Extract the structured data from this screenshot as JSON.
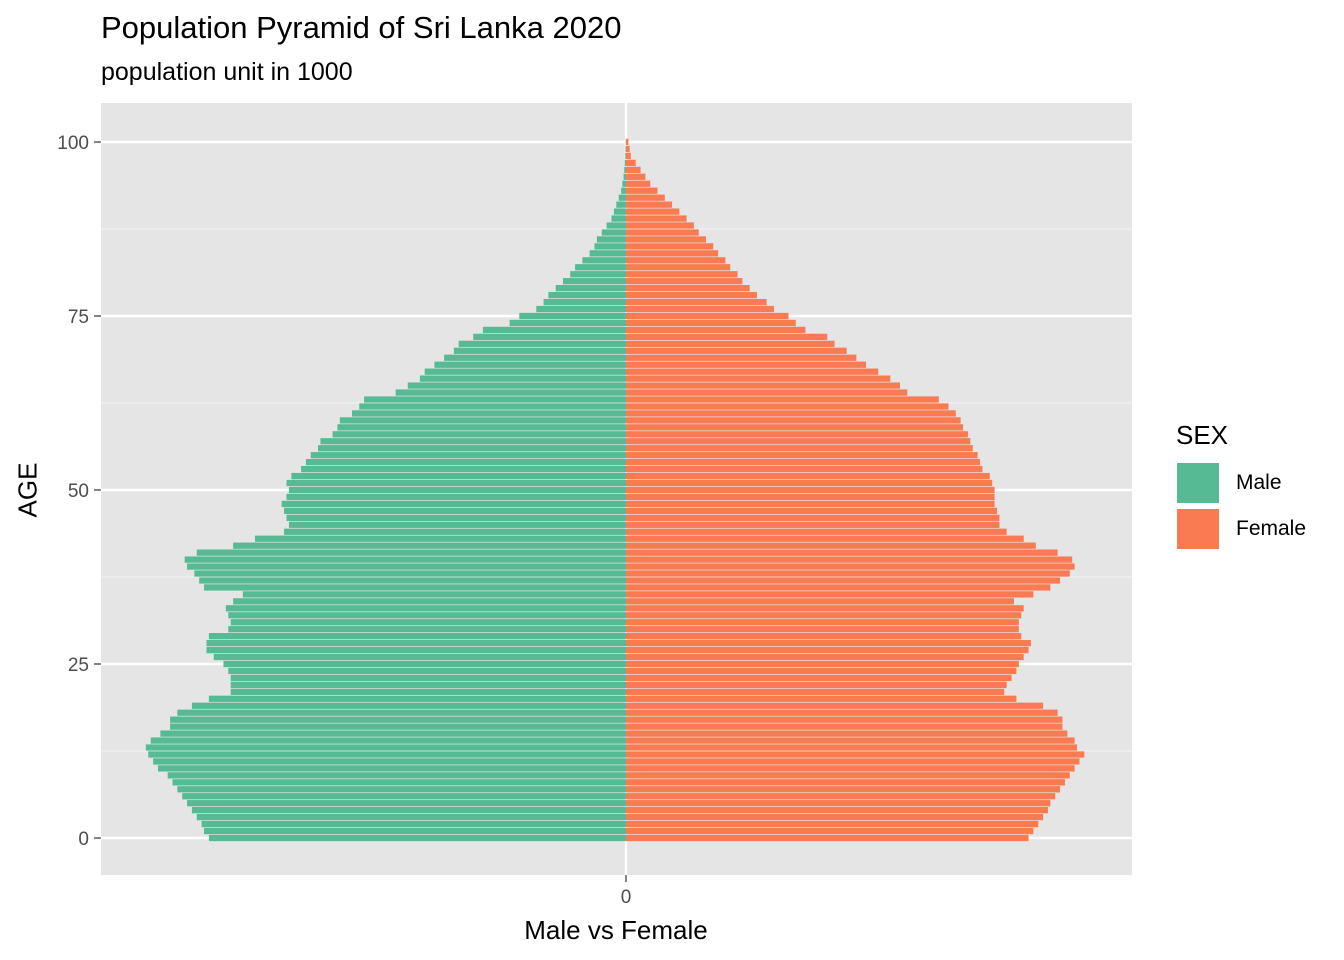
{
  "chart_data": {
    "type": "bar",
    "orientation": "horizontal",
    "title": "Population Pyramid of Sri Lanka 2020",
    "subtitle": "population unit in 1000",
    "xlabel": "Male vs Female",
    "ylabel": "AGE",
    "y_ticks": [
      "0",
      "25",
      "50",
      "75",
      "100"
    ],
    "x_ticks": [
      "0"
    ],
    "grid": true,
    "legend": {
      "title": "SEX",
      "position": "right",
      "entries": [
        {
          "name": "Male",
          "color": "#56BA94"
        },
        {
          "name": "Female",
          "color": "#FA7A51"
        }
      ]
    },
    "ages": [
      0,
      1,
      2,
      3,
      4,
      5,
      6,
      7,
      8,
      9,
      10,
      11,
      12,
      13,
      14,
      15,
      16,
      17,
      18,
      19,
      20,
      21,
      22,
      23,
      24,
      25,
      26,
      27,
      28,
      29,
      30,
      31,
      32,
      33,
      34,
      35,
      36,
      37,
      38,
      39,
      40,
      41,
      42,
      43,
      44,
      45,
      46,
      47,
      48,
      49,
      50,
      51,
      52,
      53,
      54,
      55,
      56,
      57,
      58,
      59,
      60,
      61,
      62,
      63,
      64,
      65,
      66,
      67,
      68,
      69,
      70,
      71,
      72,
      73,
      74,
      75,
      76,
      77,
      78,
      79,
      80,
      81,
      82,
      83,
      84,
      85,
      86,
      87,
      88,
      89,
      90,
      91,
      92,
      93,
      94,
      95,
      96,
      97,
      98,
      99,
      100
    ],
    "series": [
      {
        "name": "Male",
        "color": "#56BA94",
        "values": [
          -172,
          -174,
          -175,
          -177,
          -179,
          -181,
          -183,
          -185,
          -187,
          -189,
          -193,
          -195,
          -197,
          -198,
          -196,
          -192,
          -188,
          -188,
          -185,
          -179,
          -172,
          -163,
          -163,
          -163,
          -164,
          -166,
          -170,
          -173,
          -173,
          -172,
          -164,
          -163,
          -164,
          -165,
          -162,
          -158,
          -174,
          -176,
          -178,
          -181,
          -182,
          -177,
          -162,
          -153,
          -141,
          -139,
          -140,
          -141,
          -142,
          -140,
          -139,
          -140,
          -138,
          -134,
          -132,
          -130,
          -127,
          -126,
          -121,
          -119,
          -118,
          -113,
          -110,
          -108,
          -95,
          -90,
          -85,
          -83,
          -79,
          -75,
          -71,
          -69,
          -63,
          -59,
          -48,
          -44,
          -37,
          -34,
          -32,
          -29,
          -26,
          -23,
          -21,
          -18,
          -15,
          -13,
          -12,
          -10,
          -8,
          -6,
          -5,
          -4,
          -3,
          -2,
          -1.5,
          -1,
          -0.7,
          -0.5,
          -0.3,
          -0.2,
          -0.1
        ]
      },
      {
        "name": "Female",
        "color": "#FA7A51",
        "values": [
          166,
          168,
          170,
          172,
          174,
          175,
          177,
          179,
          181,
          183,
          185,
          187,
          189,
          186,
          185,
          182,
          180,
          180,
          178,
          172,
          161,
          156,
          157,
          159,
          161,
          162,
          164,
          166,
          167,
          163,
          162,
          162,
          163,
          164,
          160,
          168,
          175,
          179,
          183,
          185,
          184,
          178,
          169,
          164,
          157,
          154,
          154,
          153,
          152,
          152,
          152,
          151,
          150,
          147,
          146,
          145,
          143,
          142,
          141,
          139,
          138,
          136,
          133,
          129,
          116,
          113,
          109,
          104,
          99,
          95,
          91,
          86,
          83,
          74,
          70,
          67,
          61,
          58,
          54,
          51,
          48,
          46,
          43,
          41,
          38,
          36,
          33,
          30,
          28,
          25,
          22,
          19,
          16,
          13,
          10,
          8,
          6,
          4,
          2,
          1.5,
          1
        ]
      }
    ]
  }
}
